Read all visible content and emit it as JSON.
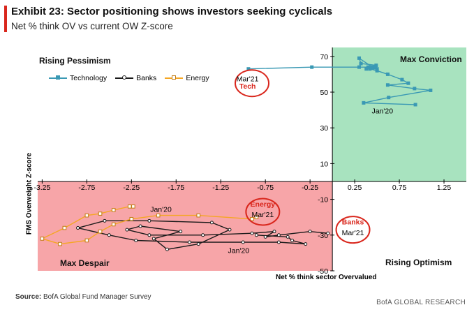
{
  "header": {
    "title": "Exhibit 23: Sector positioning shows investors seeking cyclicals",
    "subtitle": "Net % think OV vs current OW Z-score"
  },
  "footer": {
    "source_label": "Source:",
    "source_text": "BofA Global Fund Manager Survey",
    "brand": "BofA GLOBAL RESEARCH"
  },
  "colors": {
    "technology": "#3a99b4",
    "banks": "#1a1a1a",
    "energy": "#f5a623",
    "max_conviction_zone": "#a8e3bf",
    "max_despair_zone": "#f7a5a8",
    "highlight_circle": "#d9261c"
  },
  "chart_data": {
    "type": "scatter",
    "xlabel": "Net % think sector Overvalued",
    "ylabel": "FMS Overweight Z-score",
    "xlim": [
      -3.3,
      1.5
    ],
    "ylim": [
      -50,
      75
    ],
    "x_ticks": [
      "-3.25",
      "-2.75",
      "-2.25",
      "-1.75",
      "-1.25",
      "-0.75",
      "-0.25",
      "0.25",
      "0.75",
      "1.25"
    ],
    "y_ticks": [
      "70",
      "50",
      "30",
      "10",
      "-10",
      "-30",
      "-50"
    ],
    "x_tick_values": [
      -3.25,
      -2.75,
      -2.25,
      -1.75,
      -1.25,
      -0.75,
      -0.25,
      0.25,
      0.75,
      1.25
    ],
    "y_tick_values": [
      70,
      50,
      30,
      10,
      -10,
      -30,
      -50
    ],
    "quadrant_labels": {
      "top_left": "Rising Pessimism",
      "top_right": "Max Conviction",
      "bottom_left": "Max Despair",
      "bottom_right": "Rising Optimism"
    },
    "series": [
      {
        "name": "Technology",
        "x": [
          0.93,
          0.35,
          0.63,
          1.1,
          0.92,
          0.62,
          0.85,
          0.78,
          0.62,
          0.5,
          0.42,
          0.5,
          0.4,
          0.49,
          0.32,
          0.3,
          0.45,
          0.38,
          0.48,
          0.3,
          -0.23,
          -0.94
        ],
        "y": [
          43,
          44,
          47,
          51,
          52,
          54,
          55,
          57,
          60,
          62,
          63,
          63,
          64,
          65,
          66,
          69,
          64,
          63,
          64,
          64,
          64,
          63
        ]
      },
      {
        "name": "Banks",
        "x": [
          -0.85,
          -0.5,
          -0.45,
          -0.3,
          -0.6,
          -1.0,
          -1.6,
          -2.2,
          -2.5,
          -2.85,
          -2.55,
          -2.05,
          -1.35,
          -1.15,
          -1.5,
          -1.85,
          -2.0,
          -1.7,
          -2.15,
          -2.3,
          -2.05,
          -1.45,
          -0.9,
          -0.65,
          -0.75,
          -0.6,
          -0.25,
          -0.05
        ],
        "y": [
          -30,
          -31,
          -33,
          -35,
          -34,
          -34,
          -34,
          -33,
          -30,
          -26,
          -22,
          -22,
          -23,
          -27,
          -35,
          -38,
          -32,
          -28,
          -25,
          -27,
          -30,
          -30,
          -29,
          -28,
          -31,
          -30,
          -28,
          -29
        ]
      },
      {
        "name": "Energy",
        "x": [
          -2.23,
          -2.27,
          -2.45,
          -2.6,
          -2.75,
          -3.0,
          -3.25,
          -3.05,
          -2.75,
          -2.6,
          -2.45,
          -2.25,
          -1.95,
          -1.5,
          -0.9,
          -0.85
        ],
        "y": [
          -14,
          -14,
          -16,
          -18,
          -19,
          -26,
          -32,
          -35,
          -33,
          -28,
          -24,
          -21,
          -19,
          -19,
          -21,
          -20
        ]
      }
    ],
    "annotations": [
      {
        "text": "Mar'21",
        "x": -0.95,
        "y": 56,
        "bold": false
      },
      {
        "text": "Tech",
        "x": -0.95,
        "y": 52,
        "bold": true
      },
      {
        "text": "Jan'20",
        "x": 0.56,
        "y": 38,
        "bold": false
      },
      {
        "text": "Jan'20",
        "x": -1.92,
        "y": -17,
        "bold": false
      },
      {
        "text": "Energy",
        "x": -0.78,
        "y": -14,
        "bold": true
      },
      {
        "text": "Mar'21",
        "x": -0.78,
        "y": -20,
        "bold": false
      },
      {
        "text": "Jan'20",
        "x": -1.05,
        "y": -40,
        "bold": false
      },
      {
        "text": "Banks",
        "x": 0.23,
        "y": -24,
        "bold": true
      },
      {
        "text": "Mar'21",
        "x": 0.23,
        "y": -30,
        "bold": false
      }
    ],
    "highlight_circles": [
      {
        "label": "Tech",
        "x": -0.9,
        "y": 55
      },
      {
        "label": "Energy",
        "x": -0.78,
        "y": -17
      },
      {
        "label": "Banks",
        "x": 0.23,
        "y": -27
      }
    ],
    "grid": false,
    "legend_position": "top-left"
  }
}
